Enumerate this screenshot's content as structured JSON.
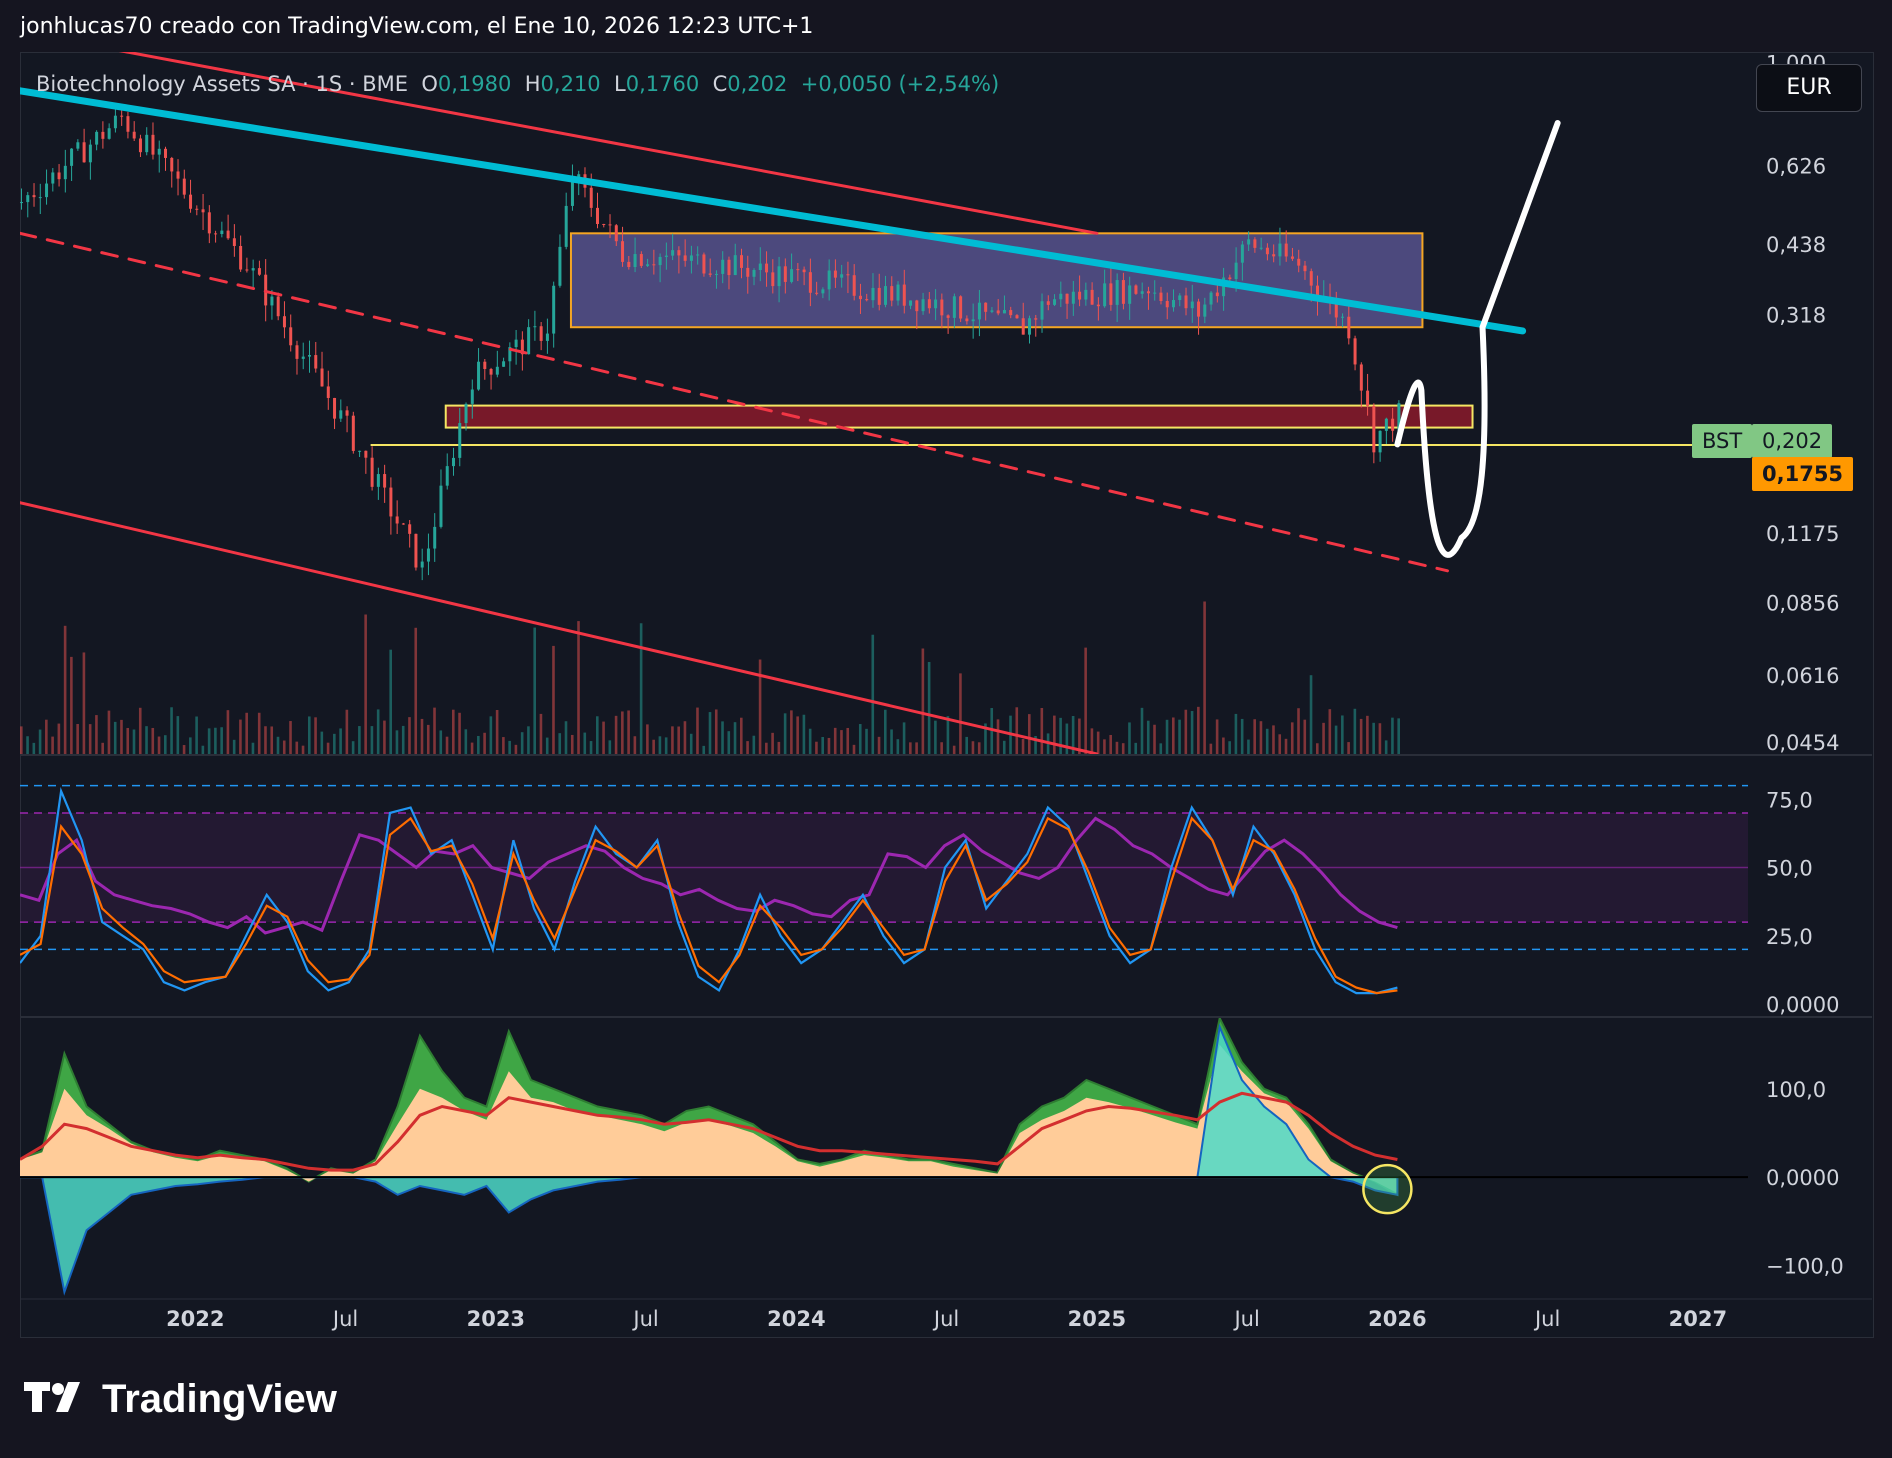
{
  "header": {
    "text": "jonhlucas70 creado con TradingView.com, el Ene 10, 2026 12:23 UTC+1"
  },
  "legend": {
    "name": "Biotechnology Assets SA · 1S · BME",
    "open_key": "O",
    "open": "0,1980",
    "high_key": "H",
    "high": "0,210",
    "low_key": "L",
    "low": "0,1760",
    "close_key": "C",
    "close": "0,202",
    "change": "+0,0050 (+2,54%)"
  },
  "currency_button": "EUR",
  "price_tags": {
    "symbol": "BST",
    "last": "0,202",
    "line": "0,1755"
  },
  "colors": {
    "background": "#131722",
    "up": "#26a69a",
    "down": "#ef5350",
    "trend_red": "#f23645",
    "trend_cyan": "#00bcd4",
    "box_fill": "#7b73c8",
    "box_border": "#f5a623",
    "zone_fill": "#8b1a2a",
    "zone_border": "#f5e663",
    "hline": "#f5e663",
    "rsi_purple": "#9c27b0",
    "stoch_k": "#2196f3",
    "stoch_d": "#ff6d00",
    "osc_green": "#3fa645",
    "osc_peach": "#ffcc99",
    "osc_cyan": "#4dd9c8",
    "osc_red": "#d32f2f",
    "tag_last": "#81c784",
    "tag_line": "#ff9800"
  },
  "chart_data": [
    {
      "type": "candlestick",
      "title": "Biotechnology Assets SA · 1S · BME",
      "scale": "log",
      "y_ticks": [
        "1,000",
        "0,626",
        "0,438",
        "0,318",
        "0,202",
        "0,1175",
        "0,0856",
        "0,0616",
        "0,0454"
      ],
      "x_ticks": [
        "2022",
        "Jul",
        "2023",
        "Jul",
        "2024",
        "Jul",
        "2025",
        "Jul",
        "2026",
        "Jul",
        "2027"
      ],
      "x_range": [
        "2021-06",
        "2027-03"
      ],
      "key_points": [
        {
          "date": "2021-06",
          "price": 0.53
        },
        {
          "date": "2021-10",
          "price": 0.78
        },
        {
          "date": "2022-03",
          "price": 0.4
        },
        {
          "date": "2022-07",
          "price": 0.19
        },
        {
          "date": "2022-10",
          "price": 0.1
        },
        {
          "date": "2022-12",
          "price": 0.24
        },
        {
          "date": "2023-03",
          "price": 0.3
        },
        {
          "date": "2023-04",
          "price": 0.6
        },
        {
          "date": "2023-06",
          "price": 0.42
        },
        {
          "date": "2023-10",
          "price": 0.4
        },
        {
          "date": "2024-06",
          "price": 0.34
        },
        {
          "date": "2024-10",
          "price": 0.3
        },
        {
          "date": "2024-11",
          "price": 0.34
        },
        {
          "date": "2025-03",
          "price": 0.36
        },
        {
          "date": "2025-05",
          "price": 0.32
        },
        {
          "date": "2025-07",
          "price": 0.44
        },
        {
          "date": "2025-09",
          "price": 0.4
        },
        {
          "date": "2025-11",
          "price": 0.3
        },
        {
          "date": "2025-12",
          "price": 0.18
        },
        {
          "date": "2026-01",
          "price": 0.202
        }
      ],
      "annotations": {
        "range_box": {
          "from": "2023-04",
          "to": "2026-02",
          "low": 0.3,
          "high": 0.46
        },
        "support_zone": {
          "from": "2022-11",
          "to": "2026-04",
          "low": 0.19,
          "high": 0.21
        },
        "horizontal_line": 0.1755,
        "upper_red_trend": [
          {
            "date": "2021-06",
            "price": 1.15
          },
          {
            "date": "2025-01",
            "price": 0.46
          }
        ],
        "cyan_trend": [
          {
            "date": "2021-06",
            "price": 0.88
          },
          {
            "date": "2026-06",
            "price": 0.295
          }
        ],
        "dashed_red_trend": [
          {
            "date": "2021-06",
            "price": 0.46
          },
          {
            "date": "2026-03",
            "price": 0.099
          }
        ],
        "lower_red_trend": [
          {
            "date": "2021-06",
            "price": 0.135
          },
          {
            "date": "2025-01",
            "price": 0.043
          }
        ],
        "projection": [
          {
            "date": "2026-01",
            "price": 0.176
          },
          {
            "date": "2026-01",
            "price": 0.225
          },
          {
            "date": "2026-03",
            "price": 0.115
          },
          {
            "date": "2026-04",
            "price": 0.3
          },
          {
            "date": "2026-07",
            "price": 0.76
          }
        ]
      }
    },
    {
      "type": "line",
      "title": "",
      "y_ticks": [
        "75,0",
        "50,0",
        "25,0",
        "0,0000"
      ],
      "ylim": [
        0,
        85
      ],
      "levels": [
        80,
        70,
        50,
        30,
        20
      ],
      "series": [
        {
          "values": [
            40,
            38,
            55,
            60,
            45,
            40,
            38,
            36,
            35,
            33,
            30,
            28,
            32,
            26,
            28,
            30,
            27,
            45,
            62,
            60,
            55,
            50,
            56,
            55,
            58,
            50,
            48,
            46,
            52,
            55,
            58,
            56,
            50,
            46,
            44,
            40,
            42,
            38,
            35,
            34,
            38,
            36,
            33,
            32,
            38,
            40,
            55,
            54,
            50,
            58,
            62,
            56,
            52,
            48,
            46,
            50,
            60,
            68,
            64,
            58,
            55,
            50,
            46,
            42,
            40,
            48,
            56,
            60,
            55,
            48,
            40,
            34,
            30,
            28
          ]
        },
        {
          "values": [
            15,
            25,
            78,
            60,
            30,
            25,
            20,
            8,
            5,
            8,
            10,
            25,
            40,
            30,
            12,
            5,
            8,
            20,
            70,
            72,
            55,
            60,
            40,
            20,
            60,
            35,
            20,
            45,
            65,
            55,
            50,
            60,
            30,
            10,
            5,
            20,
            40,
            25,
            15,
            20,
            30,
            40,
            25,
            15,
            20,
            50,
            60,
            35,
            45,
            55,
            72,
            65,
            45,
            25,
            15,
            20,
            50,
            72,
            60,
            40,
            65,
            55,
            40,
            20,
            8,
            4,
            4,
            6
          ]
        },
        {
          "values": [
            18,
            22,
            65,
            55,
            35,
            28,
            22,
            12,
            8,
            9,
            10,
            22,
            36,
            32,
            16,
            8,
            9,
            18,
            62,
            68,
            56,
            58,
            44,
            24,
            55,
            38,
            24,
            42,
            60,
            56,
            50,
            58,
            34,
            14,
            8,
            18,
            36,
            28,
            18,
            20,
            28,
            38,
            28,
            18,
            20,
            45,
            58,
            38,
            44,
            52,
            68,
            64,
            48,
            28,
            18,
            20,
            45,
            68,
            60,
            42,
            60,
            56,
            42,
            24,
            10,
            6,
            4,
            5
          ]
        }
      ]
    },
    {
      "type": "area",
      "title": "",
      "y_ticks": [
        "100,0",
        "0,0000",
        "−100,0"
      ],
      "ylim": [
        -130,
        170
      ],
      "series": [
        {
          "values": [
            20,
            30,
            140,
            80,
            60,
            40,
            30,
            25,
            20,
            30,
            25,
            20,
            10,
            -5,
            10,
            5,
            20,
            80,
            160,
            120,
            90,
            80,
            165,
            110,
            100,
            90,
            80,
            75,
            70,
            60,
            75,
            80,
            70,
            60,
            40,
            20,
            15,
            20,
            30,
            25,
            20,
            20,
            15,
            10,
            5,
            60,
            80,
            90,
            110,
            100,
            90,
            80,
            70,
            60,
            180,
            130,
            100,
            90,
            60,
            20,
            5,
            -5,
            -20
          ]
        },
        {
          "values": [
            20,
            28,
            100,
            70,
            55,
            38,
            28,
            22,
            18,
            25,
            22,
            18,
            8,
            -5,
            8,
            4,
            18,
            60,
            100,
            90,
            75,
            65,
            120,
            90,
            85,
            75,
            70,
            65,
            60,
            52,
            62,
            65,
            58,
            50,
            35,
            18,
            12,
            18,
            25,
            22,
            18,
            18,
            12,
            8,
            4,
            50,
            65,
            75,
            90,
            85,
            78,
            70,
            62,
            55,
            150,
            120,
            95,
            85,
            55,
            18,
            4,
            -5,
            -18
          ]
        },
        {
          "values": [
            0,
            0,
            -130,
            -60,
            -40,
            -20,
            -15,
            -10,
            -8,
            -5,
            -3,
            0,
            0,
            0,
            0,
            0,
            -5,
            -20,
            -10,
            -15,
            -20,
            -10,
            -40,
            -25,
            -15,
            -10,
            -5,
            -3,
            0,
            0,
            0,
            0,
            0,
            0,
            0,
            0,
            0,
            0,
            0,
            0,
            0,
            0,
            0,
            0,
            0,
            0,
            0,
            0,
            0,
            0,
            0,
            0,
            0,
            0,
            170,
            110,
            80,
            60,
            20,
            0,
            -5,
            -15,
            -20
          ]
        },
        {
          "values": [
            20,
            35,
            60,
            55,
            45,
            35,
            30,
            25,
            22,
            25,
            22,
            20,
            15,
            10,
            8,
            8,
            15,
            40,
            70,
            80,
            75,
            70,
            90,
            85,
            80,
            75,
            70,
            68,
            65,
            60,
            62,
            65,
            60,
            55,
            45,
            35,
            30,
            30,
            28,
            26,
            24,
            22,
            20,
            18,
            15,
            35,
            55,
            65,
            75,
            80,
            78,
            74,
            70,
            65,
            85,
            95,
            90,
            85,
            70,
            50,
            35,
            25,
            20
          ]
        }
      ]
    }
  ]
}
